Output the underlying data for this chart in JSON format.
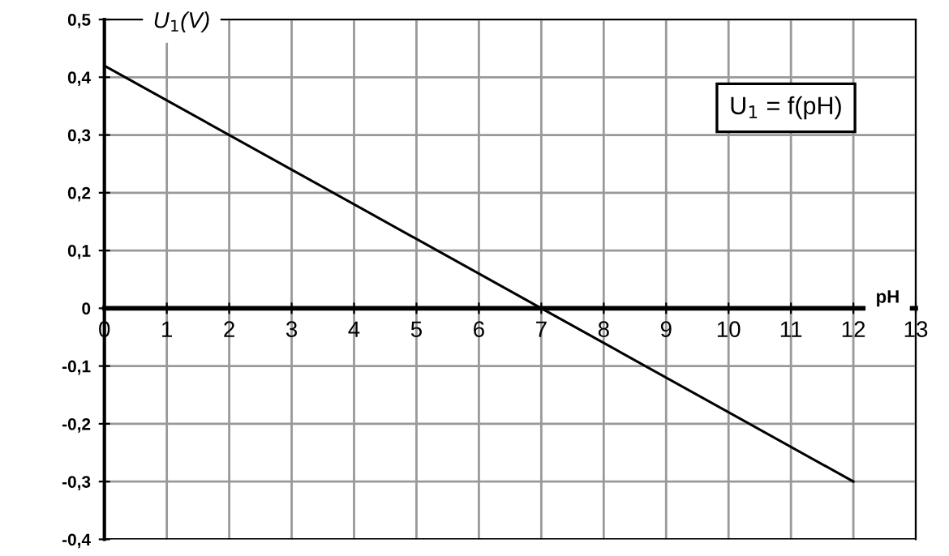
{
  "chart_data": {
    "type": "line",
    "ylabel": "U$_{1}$(V)",
    "xlabel": "pH",
    "annotations": [
      "U$_{1}$ = f(pH)"
    ],
    "series": [
      {
        "color": "#000000",
        "x": [
          0,
          7,
          12
        ],
        "values": [
          0.42,
          0,
          -0.3
        ]
      }
    ],
    "xlim": [
      0,
      13
    ],
    "ylim": [
      -0.4,
      0.5
    ],
    "xticks": [
      {
        "value": 0,
        "label": "0"
      },
      1,
      2,
      3,
      4,
      5,
      6,
      7,
      8,
      9,
      10,
      11,
      12,
      13
    ],
    "yticks": [
      {
        "value": -0.4,
        "label": "-0,4"
      },
      {
        "value": -0.3,
        "label": "-0,3"
      },
      {
        "value": -0.2,
        "label": "-0,2"
      },
      {
        "value": -0.1,
        "label": "-0,1"
      },
      {
        "value": 0,
        "label": "0"
      },
      {
        "value": 0.1,
        "label": "0,1"
      },
      {
        "value": 0.2,
        "label": "0,2"
      },
      {
        "value": 0.3,
        "label": "0,3"
      },
      {
        "value": 0.4,
        "label": "0,4"
      },
      {
        "value": 0.5,
        "label": "0,5"
      }
    ],
    "grid": true,
    "marker": "none",
    "line_style": "solid"
  }
}
